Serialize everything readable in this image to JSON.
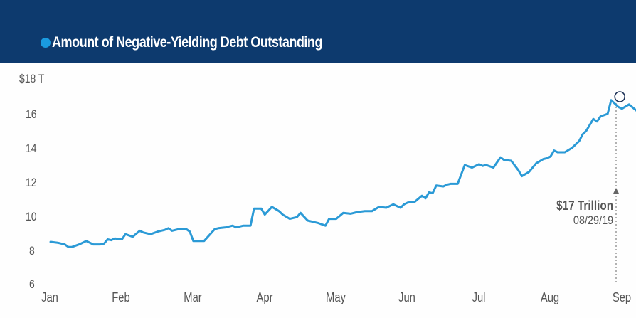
{
  "header": {
    "legend_label": "Amount of Negative-Yielding Debt Outstanding",
    "background_color": "#0d3a6e",
    "legend_dot_color": "#1a9be0"
  },
  "y_axis": {
    "ticks": [
      "$18 T",
      "16",
      "14",
      "12",
      "10",
      "8",
      "6"
    ]
  },
  "x_axis": {
    "ticks": [
      "Jan",
      "Feb",
      "Mar",
      "Apr",
      "May",
      "Jun",
      "Jul",
      "Aug",
      "Sep"
    ]
  },
  "annotation": {
    "value_label": "$17 Trillion",
    "date_label": "08/29/19"
  },
  "chart_data": {
    "type": "line",
    "title": "Amount of Negative-Yielding Debt Outstanding",
    "xlabel": "",
    "ylabel": "",
    "ylim": [
      6,
      18
    ],
    "y_unit": "$ Trillion",
    "grid": false,
    "legend_position": "top-left",
    "line_color": "#2b9ad6",
    "x_tick_labels": [
      "Jan",
      "Feb",
      "Mar",
      "Apr",
      "May",
      "Jun",
      "Jul",
      "Aug",
      "Sep"
    ],
    "y_tick_labels": [
      "6",
      "8",
      "10",
      "12",
      "14",
      "16",
      "$18 T"
    ],
    "series": [
      {
        "name": "Amount of Negative-Yielding Debt Outstanding",
        "x_month_fraction": [
          0.0,
          0.1,
          0.2,
          0.25,
          0.3,
          0.4,
          0.5,
          0.6,
          0.7,
          0.75,
          0.8,
          0.85,
          0.9,
          1.0,
          1.05,
          1.15,
          1.25,
          1.3,
          1.4,
          1.5,
          1.6,
          1.65,
          1.7,
          1.8,
          1.9,
          1.95,
          2.0,
          2.1,
          2.15,
          2.3,
          2.35,
          2.45,
          2.55,
          2.6,
          2.7,
          2.8,
          2.85,
          2.95,
          3.0,
          3.1,
          3.2,
          3.25,
          3.35,
          3.45,
          3.5,
          3.6,
          3.65,
          3.75,
          3.85,
          3.9,
          4.0,
          4.1,
          4.2,
          4.3,
          4.4,
          4.5,
          4.6,
          4.7,
          4.8,
          4.85,
          4.9,
          4.95,
          5.0,
          5.1,
          5.2,
          5.25,
          5.3,
          5.35,
          5.4,
          5.5,
          5.55,
          5.6,
          5.7,
          5.8,
          5.9,
          6.0,
          6.05,
          6.1,
          6.2,
          6.3,
          6.35,
          6.45,
          6.55,
          6.6,
          6.7,
          6.8,
          6.9,
          6.95,
          7.0,
          7.05,
          7.1,
          7.2,
          7.3,
          7.4,
          7.45,
          7.5,
          7.6,
          7.65,
          7.7,
          7.8,
          7.85,
          7.95,
          8.0,
          8.1,
          8.2,
          8.3,
          8.4,
          8.45,
          8.55,
          8.7,
          8.8,
          8.9,
          8.97,
          9.05,
          9.1,
          9.15
        ],
        "values": [
          8.5,
          8.45,
          8.35,
          8.2,
          8.2,
          8.35,
          8.55,
          8.35,
          8.35,
          8.4,
          8.65,
          8.6,
          8.7,
          8.65,
          8.95,
          8.8,
          9.15,
          9.05,
          8.95,
          9.1,
          9.2,
          9.3,
          9.15,
          9.25,
          9.25,
          9.1,
          8.55,
          8.55,
          8.55,
          9.25,
          9.3,
          9.35,
          9.45,
          9.35,
          9.45,
          9.45,
          10.45,
          10.45,
          10.1,
          10.55,
          10.3,
          10.1,
          9.85,
          9.95,
          10.2,
          9.75,
          9.7,
          9.6,
          9.45,
          9.85,
          9.85,
          10.2,
          10.15,
          10.25,
          10.3,
          10.3,
          10.55,
          10.5,
          10.7,
          10.6,
          10.5,
          10.7,
          10.8,
          10.85,
          11.2,
          11.05,
          11.4,
          11.35,
          11.8,
          11.75,
          11.85,
          11.9,
          11.9,
          13.0,
          12.85,
          13.05,
          12.95,
          13.0,
          12.85,
          13.45,
          13.3,
          13.25,
          12.7,
          12.35,
          12.6,
          13.1,
          13.35,
          13.4,
          13.5,
          13.85,
          13.75,
          13.75,
          14.0,
          14.4,
          14.8,
          15.0,
          15.7,
          15.55,
          15.85,
          16.0,
          16.8,
          16.4,
          16.3,
          16.55,
          16.2,
          16.5,
          16.75,
          17.05,
          16.8,
          16.6,
          16.85,
          16.45,
          16.55,
          15.7,
          15.75,
          15.75
        ]
      }
    ],
    "annotations": [
      {
        "text": "$17 Trillion",
        "subtext": "08/29/19",
        "x_month_fraction": 7.97,
        "value": 17.0,
        "marker": "circle",
        "leader_line": "dotted-vertical-with-arrow"
      }
    ]
  }
}
